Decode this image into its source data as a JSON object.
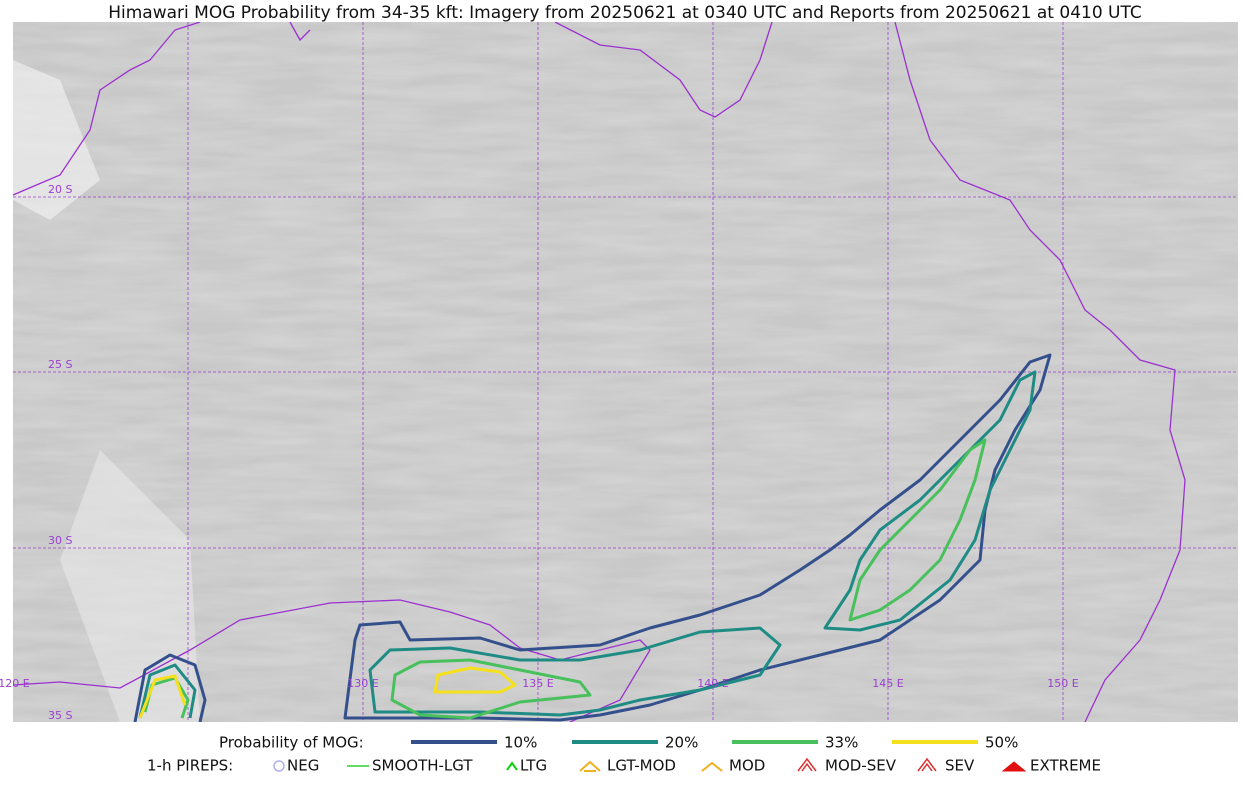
{
  "title": "Himawari MOG Probability from 34-35 kft: Imagery from 20250621 at 0340 UTC and Reports from 20250621 at 0410 UTC",
  "map": {
    "lat_labels": [
      "20 S",
      "25 S",
      "30 S",
      "35 S"
    ],
    "lon_labels": [
      "120 E",
      "130 E",
      "135 E",
      "140 E",
      "145 E",
      "150 E"
    ]
  },
  "legend": {
    "probability": {
      "label": "Probability of MOG:",
      "items": [
        {
          "text": "10%",
          "color": "#34508c"
        },
        {
          "text": "20%",
          "color": "#1e8c84"
        },
        {
          "text": "33%",
          "color": "#48c05c"
        },
        {
          "text": "50%",
          "color": "#f4e01c"
        }
      ]
    },
    "pireps": {
      "label": "1-h PIREPS:",
      "items": [
        {
          "text": "NEG",
          "color": "#b0b0f0"
        },
        {
          "text": "SMOOTH-LGT",
          "color": "#30d030"
        },
        {
          "text": "LTG",
          "color": "#10d010"
        },
        {
          "text": "LGT-MOD",
          "color": "#f0b020"
        },
        {
          "text": "MOD",
          "color": "#f0b020"
        },
        {
          "text": "MOD-SEV",
          "color": "#e03030"
        },
        {
          "text": "SEV",
          "color": "#e03030"
        },
        {
          "text": "EXTREME",
          "color": "#e01010"
        }
      ]
    }
  }
}
